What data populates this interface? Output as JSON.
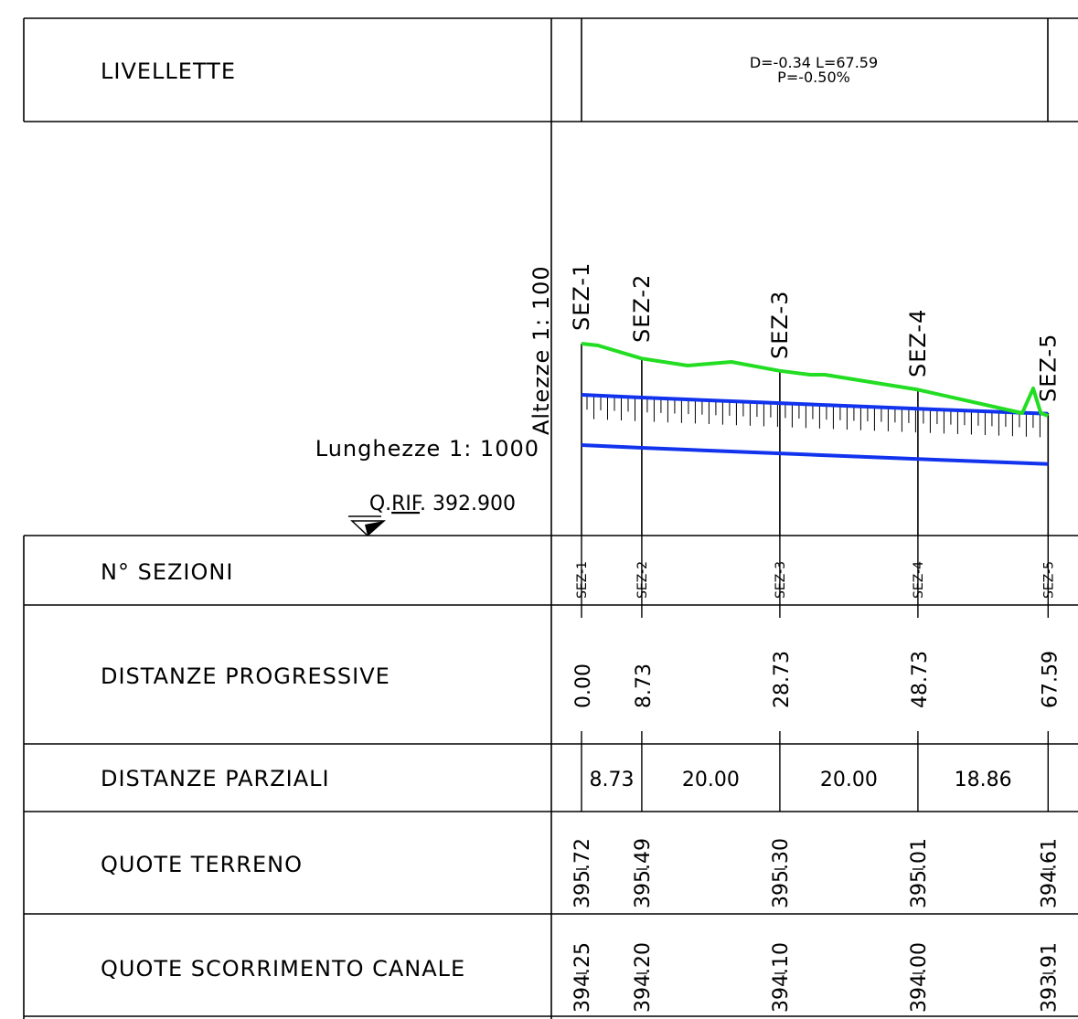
{
  "rows": {
    "livellette": "LIVELLETTE",
    "n_sezioni": "N° SEZIONI",
    "distanze_progressive": "DISTANZE PROGRESSIVE",
    "distanze_parziali": "DISTANZE PARZIALI",
    "quote_terreno": "QUOTE TERRENO",
    "quote_scorrimento": "QUOTE SCORRIMENTO CANALE"
  },
  "livelletta": {
    "line1": "D=-0.34 L=67.59",
    "line2": "P=-0.50%"
  },
  "scales": {
    "altezze": "Altezze 1: 100",
    "lunghezze": "Lunghezze 1: 1000",
    "q_rif_prefix": "Q.",
    "q_rif_underlined": "RIF",
    "q_rif_value": ". 392.900"
  },
  "sections": [
    {
      "name": "SEZ-1",
      "progressive": "0.00",
      "terreno": "395.72",
      "scorrimento": "394.25"
    },
    {
      "name": "SEZ-2",
      "progressive": "8.73",
      "terreno": "395.49",
      "scorrimento": "394.20"
    },
    {
      "name": "SEZ-3",
      "progressive": "28.73",
      "terreno": "395.30",
      "scorrimento": "394.10"
    },
    {
      "name": "SEZ-4",
      "progressive": "48.73",
      "terreno": "395.01",
      "scorrimento": "394.00"
    },
    {
      "name": "SEZ-5",
      "progressive": "67.59",
      "terreno": "394.61",
      "scorrimento": "393.91"
    }
  ],
  "parziali": [
    "8.73",
    "20.00",
    "20.00",
    "18.86"
  ],
  "colors": {
    "ground_line": "#22dd22",
    "channel_line": "#1133ee",
    "linework": "#000000"
  }
}
